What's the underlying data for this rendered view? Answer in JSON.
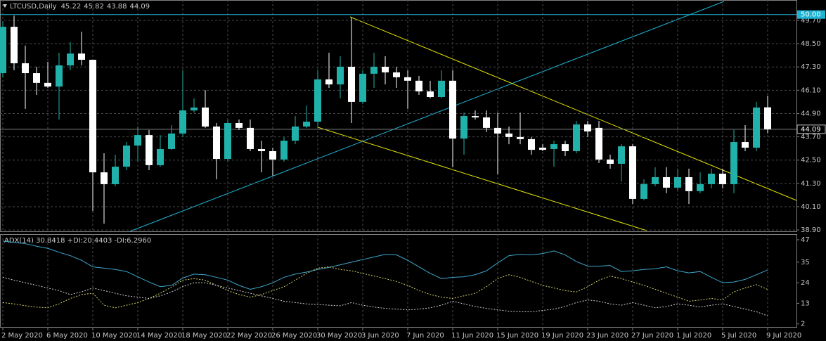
{
  "chart_data": [
    {
      "type": "candlestick",
      "title": "LTCUSD,Daily",
      "categories": [
        "2 May 2020",
        null,
        null,
        null,
        "6 May 2020",
        null,
        null,
        null,
        "10 May 2020",
        null,
        null,
        null,
        "14 May 2020",
        null,
        null,
        null,
        "18 May 2020",
        null,
        null,
        null,
        "22 May 2020",
        null,
        null,
        null,
        "26 May 2020",
        null,
        null,
        null,
        "30 May 2020",
        null,
        null,
        null,
        "3 Jun 2020",
        null,
        null,
        null,
        "7 Jun 2020",
        null,
        null,
        null,
        "11 Jun 2020",
        null,
        null,
        null,
        "15 Jun 2020",
        null,
        null,
        null,
        "19 Jun 2020",
        null,
        null,
        null,
        "23 Jun 2020",
        null,
        null,
        null,
        "27 Jun 2020",
        null,
        null,
        null,
        "1 Jul 2020",
        null,
        null,
        null,
        "5 Jul 2020",
        null,
        null,
        null,
        "9 Jul 2020"
      ],
      "open": [
        46.98,
        49.37,
        47.49,
        46.98,
        46.48,
        46.29,
        47.38,
        47.99,
        47.67,
        41.87,
        41.26,
        42.16,
        43.25,
        43.79,
        42.24,
        43.07,
        43.87,
        45.06,
        45.21,
        44.23,
        42.56,
        44.41,
        44.16,
        43.07,
        42.96,
        42.53,
        43.5,
        44.23,
        44.48,
        46.66,
        46.4,
        47.31,
        45.5,
        46.95,
        47.31,
        47.02,
        46.77,
        46.59,
        46.04,
        45.75,
        46.59,
        43.61,
        44.77,
        44.7,
        44.16,
        43.87,
        43.69,
        43.58,
        43.14,
        43.07,
        43.32,
        42.96,
        44.34,
        44.16,
        42.53,
        42.31,
        43.21,
        40.5,
        41.26,
        41.62,
        41.08,
        41.62,
        40.9,
        41.26,
        41.8,
        41.26,
        43.43,
        43.14,
        45.22
      ],
      "high": [
        49.66,
        49.95,
        48.4,
        47.31,
        47.56,
        48.03,
        48.58,
        49.12,
        47.67,
        42.85,
        42.78,
        43.43,
        44.23,
        44.05,
        43.79,
        44.3,
        47.13,
        45.68,
        46.11,
        44.41,
        44.59,
        44.59,
        44.59,
        43.5,
        43.14,
        43.69,
        44.77,
        45.32,
        47.13,
        48.03,
        47.85,
        49.84,
        47.13,
        48.03,
        47.85,
        47.31,
        47.13,
        46.84,
        46.59,
        47.13,
        47.13,
        44.95,
        45.06,
        45.06,
        44.95,
        44.23,
        44.95,
        43.69,
        43.32,
        43.5,
        43.5,
        44.52,
        44.52,
        44.52,
        42.78,
        43.32,
        43.32,
        41.51,
        42.13,
        42.13,
        42.06,
        42.06,
        41.87,
        42.06,
        42.06,
        44.05,
        44.3,
        45.5,
        45.82
      ],
      "low": [
        46.77,
        47.13,
        45.14,
        45.86,
        46.22,
        44.59,
        47.13,
        47.38,
        39.88,
        39.23,
        41.15,
        41.98,
        42.42,
        41.98,
        42.16,
        43.03,
        43.69,
        44.95,
        44.16,
        41.51,
        42.42,
        44.05,
        42.96,
        41.87,
        41.69,
        42.42,
        43.32,
        44.16,
        44.16,
        46.22,
        45.68,
        44.41,
        45.39,
        46.22,
        46.4,
        46.22,
        45.14,
        45.86,
        45.68,
        45.68,
        42.13,
        42.78,
        44.59,
        43.94,
        41.77,
        43.32,
        43.32,
        42.78,
        42.96,
        42.16,
        42.71,
        42.85,
        43.69,
        42.35,
        42.06,
        41.4,
        40.24,
        40.43,
        41.15,
        40.79,
        40.97,
        40.24,
        40.79,
        41.04,
        41.04,
        40.79,
        42.96,
        42.96,
        43.88
      ],
      "close": [
        49.37,
        47.49,
        46.98,
        46.48,
        46.29,
        47.38,
        47.99,
        47.67,
        41.87,
        41.26,
        42.16,
        43.25,
        43.79,
        42.24,
        43.07,
        43.87,
        45.06,
        45.21,
        44.23,
        42.56,
        44.41,
        44.16,
        43.07,
        42.96,
        42.53,
        43.5,
        44.23,
        44.48,
        46.66,
        46.4,
        47.31,
        45.5,
        46.95,
        47.31,
        47.02,
        46.77,
        46.59,
        46.04,
        45.75,
        46.59,
        43.61,
        44.77,
        44.7,
        44.16,
        43.87,
        43.69,
        43.58,
        43.03,
        43.03,
        43.32,
        42.96,
        44.34,
        43.98,
        42.53,
        42.31,
        43.21,
        40.5,
        41.26,
        41.62,
        41.08,
        41.62,
        40.9,
        41.26,
        41.8,
        41.26,
        43.43,
        43.14,
        45.21,
        44.09
      ],
      "up_color": "#20b2aa",
      "down_color": "#ffffff",
      "ylim": [
        38.83,
        50.75
      ],
      "yticks": [
        {
          "value": 49.7,
          "label": "49.70"
        },
        {
          "value": 48.5,
          "label": "48.50"
        },
        {
          "value": 47.3,
          "label": "47.30"
        },
        {
          "value": 46.1,
          "label": "46.10"
        },
        {
          "value": 44.9,
          "label": "44.90"
        },
        {
          "value": 43.7,
          "label": "43.70"
        },
        {
          "value": 42.5,
          "label": "42.50"
        },
        {
          "value": 41.3,
          "label": "41.30"
        },
        {
          "value": 40.1,
          "label": "40.10"
        },
        {
          "value": 38.9,
          "label": "38.90"
        }
      ],
      "price_line": {
        "value": 50.0,
        "label": "50.00",
        "color": "#1fb4d4"
      },
      "last_price": {
        "value": 44.09,
        "label": "44.09"
      },
      "grid": true
    },
    {
      "type": "line",
      "title": "ADX(14) 30.8418 +DI:20.4403 -DI:6.2960",
      "series": [
        {
          "color": "#3fa6cc",
          "dashed": false,
          "values": [
            46.3,
            45.6,
            44.9,
            43.5,
            42.4,
            40.3,
            38.5,
            36.0,
            32.5,
            31.8,
            31.1,
            30.0,
            27.2,
            24.4,
            21.9,
            22.6,
            26.5,
            28.6,
            28.3,
            26.9,
            25.4,
            22.6,
            20.5,
            21.9,
            24.0,
            26.9,
            28.6,
            29.7,
            31.1,
            32.2,
            33.6,
            35.0,
            36.4,
            37.8,
            39.2,
            38.9,
            36.0,
            32.5,
            29.0,
            26.2,
            26.9,
            27.2,
            28.3,
            30.4,
            34.6,
            38.5,
            39.2,
            38.9,
            39.6,
            41.0,
            38.9,
            35.3,
            32.9,
            32.9,
            33.2,
            30.0,
            30.4,
            31.1,
            31.5,
            32.5,
            30.4,
            29.3,
            30.0,
            26.9,
            24.0,
            24.4,
            25.8,
            28.3,
            30.8418
          ]
        },
        {
          "color": "#d6d36a",
          "dashed": true,
          "values": [
            13.4,
            12.7,
            11.7,
            11.0,
            10.6,
            12.7,
            15.6,
            17.7,
            18.4,
            12.0,
            10.6,
            12.0,
            13.4,
            15.6,
            18.4,
            21.6,
            25.4,
            26.2,
            25.4,
            22.6,
            19.8,
            17.7,
            16.3,
            17.7,
            19.8,
            21.9,
            25.4,
            29.0,
            31.8,
            32.5,
            31.1,
            30.4,
            29.0,
            27.6,
            26.2,
            24.7,
            22.6,
            19.8,
            17.7,
            16.3,
            15.6,
            17.0,
            18.4,
            21.9,
            26.2,
            28.3,
            26.9,
            24.7,
            22.6,
            21.2,
            19.8,
            19.1,
            21.9,
            25.4,
            27.6,
            26.2,
            24.4,
            22.6,
            20.5,
            18.4,
            16.3,
            14.1,
            14.8,
            15.6,
            14.8,
            19.1,
            21.2,
            23.0,
            20.4403
          ]
        },
        {
          "color": "#cfcfcf",
          "dashed": true,
          "values": [
            26.9,
            25.4,
            24.0,
            22.6,
            21.2,
            19.8,
            17.7,
            19.1,
            21.2,
            19.8,
            18.4,
            17.0,
            16.3,
            15.6,
            17.0,
            19.1,
            21.9,
            24.0,
            24.0,
            22.6,
            21.2,
            19.8,
            18.4,
            17.0,
            15.6,
            14.1,
            13.4,
            12.7,
            12.4,
            12.0,
            11.7,
            13.4,
            12.0,
            11.0,
            10.3,
            9.9,
            9.5,
            9.9,
            10.6,
            12.0,
            14.1,
            12.7,
            11.3,
            10.3,
            9.5,
            8.8,
            8.5,
            8.5,
            9.2,
            9.9,
            11.3,
            13.4,
            14.8,
            14.1,
            12.7,
            12.0,
            13.4,
            12.0,
            10.6,
            11.3,
            12.7,
            12.0,
            11.0,
            12.0,
            12.7,
            11.3,
            9.9,
            8.5,
            6.296
          ]
        }
      ],
      "ylim": [
        0,
        50
      ],
      "yticks": [
        47,
        35,
        24,
        13,
        2
      ],
      "grid": true
    }
  ]
}
